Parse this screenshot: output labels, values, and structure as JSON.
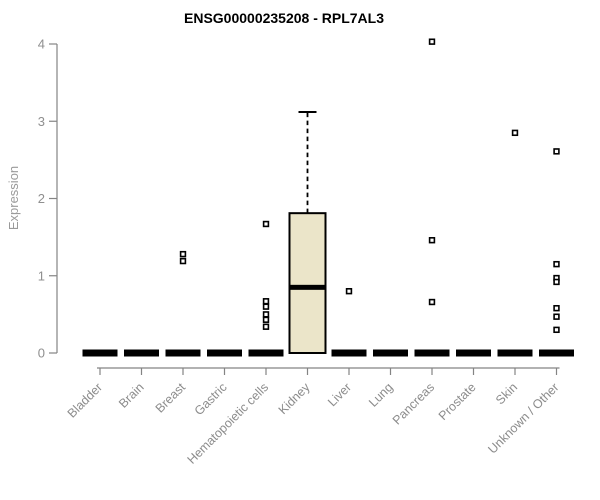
{
  "chart_data": {
    "type": "boxplot",
    "title": "ENSG00000235208 - RPL7AL3",
    "xlabel": "",
    "ylabel": "Expression",
    "ylim": [
      0,
      4
    ],
    "yticks": [
      "0",
      "1",
      "2",
      "3",
      "4"
    ],
    "grid": false,
    "legend": false,
    "x_tick_label_rotation_deg": 45,
    "categories": [
      "Bladder",
      "Brain",
      "Breast",
      "Gastric",
      "Hematopoietic cells",
      "Kidney",
      "Liver",
      "Lung",
      "Pancreas",
      "Prostate",
      "Skin",
      "Unknown / Other"
    ],
    "series": [
      {
        "category": "Bladder",
        "low": 0,
        "q1": 0,
        "median": 0,
        "q3": 0,
        "high": 0,
        "outliers": []
      },
      {
        "category": "Brain",
        "low": 0,
        "q1": 0,
        "median": 0,
        "q3": 0,
        "high": 0,
        "outliers": []
      },
      {
        "category": "Breast",
        "low": 0,
        "q1": 0,
        "median": 0,
        "q3": 0,
        "high": 0,
        "outliers": [
          1.28,
          1.19
        ]
      },
      {
        "category": "Gastric",
        "low": 0,
        "q1": 0,
        "median": 0,
        "q3": 0,
        "high": 0,
        "outliers": []
      },
      {
        "category": "Hematopoietic cells",
        "low": 0,
        "q1": 0,
        "median": 0,
        "q3": 0,
        "high": 0,
        "outliers": [
          1.67,
          0.67,
          0.6,
          0.5,
          0.43,
          0.34
        ]
      },
      {
        "category": "Kidney",
        "low": 0,
        "q1": 0,
        "median": 0.85,
        "q3": 1.81,
        "high": 3.12,
        "outliers": []
      },
      {
        "category": "Liver",
        "low": 0,
        "q1": 0,
        "median": 0,
        "q3": 0,
        "high": 0,
        "outliers": [
          0.8
        ]
      },
      {
        "category": "Lung",
        "low": 0,
        "q1": 0,
        "median": 0,
        "q3": 0,
        "high": 0,
        "outliers": []
      },
      {
        "category": "Pancreas",
        "low": 0,
        "q1": 0,
        "median": 0,
        "q3": 0,
        "high": 0,
        "outliers": [
          4.03,
          1.46,
          0.66
        ]
      },
      {
        "category": "Prostate",
        "low": 0,
        "q1": 0,
        "median": 0,
        "q3": 0,
        "high": 0,
        "outliers": []
      },
      {
        "category": "Skin",
        "low": 0,
        "q1": 0,
        "median": 0,
        "q3": 0,
        "high": 0,
        "outliers": [
          2.85
        ]
      },
      {
        "category": "Unknown / Other",
        "low": 0,
        "q1": 0,
        "median": 0,
        "q3": 0,
        "high": 0,
        "outliers": [
          2.61,
          1.15,
          0.97,
          0.92,
          0.58,
          0.47,
          0.3
        ]
      }
    ],
    "colors": {
      "box_fill": "#ebe5c9",
      "box_stroke": "#000000",
      "median": "#000000",
      "collapsed_bar": "#000000",
      "outlier_stroke": "#000000",
      "outlier_fill": "#ffffff",
      "axis": "#848484",
      "tick_label": "#8f8f8f",
      "x_label": "#8c8c8c",
      "title": "#000000",
      "background": "#ffffff"
    }
  }
}
